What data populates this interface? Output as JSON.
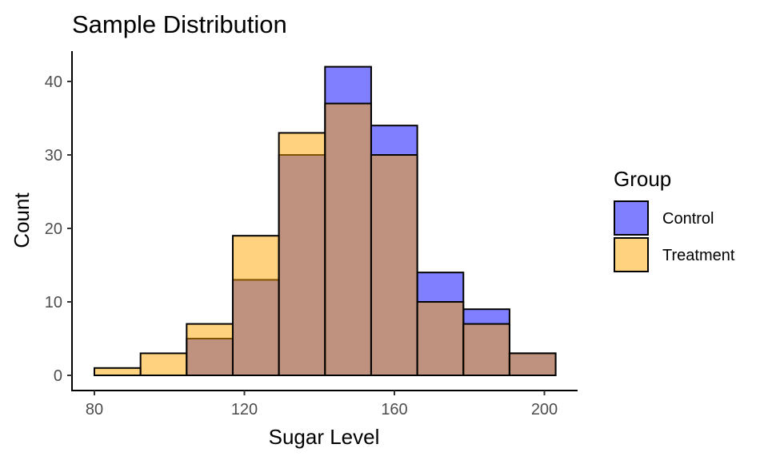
{
  "chart_data": {
    "type": "bar",
    "title": "Sample Distribution",
    "xlabel": "Sugar Level",
    "ylabel": "Count",
    "xlim": [
      75,
      210
    ],
    "ylim": [
      -2,
      44
    ],
    "x_ticks": [
      80,
      120,
      160,
      200
    ],
    "y_ticks": [
      0,
      10,
      20,
      30,
      40
    ],
    "grid": false,
    "legend": {
      "title": "Group",
      "placement": "right",
      "entries": [
        "Control",
        "Treatment"
      ]
    },
    "bin_edges": [
      80,
      92.3,
      104.6,
      116.9,
      129.2,
      141.5,
      153.8,
      166.1,
      178.4,
      190.7,
      203
    ],
    "series": [
      {
        "name": "Control",
        "color": "#0000FF",
        "opacity": 0.5,
        "values": [
          0,
          0,
          5,
          13,
          30,
          42,
          34,
          14,
          9,
          3
        ]
      },
      {
        "name": "Treatment",
        "color": "#FFA500",
        "opacity": 0.5,
        "values": [
          1,
          3,
          7,
          19,
          33,
          37,
          30,
          10,
          7,
          3
        ]
      }
    ]
  }
}
